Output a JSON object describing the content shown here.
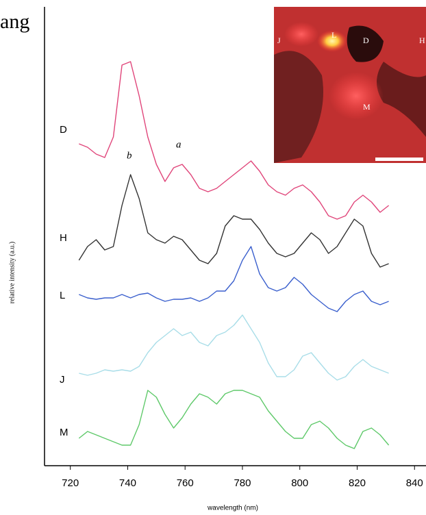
{
  "chart_data": {
    "type": "line",
    "x_label": "wavelength (nm)",
    "y_label": "relative intensity (a.u.)",
    "corner_text": "ang",
    "annotations": [
      "a",
      "b"
    ],
    "inset_labels": [
      "J",
      "L",
      "D",
      "H",
      "M"
    ],
    "x": [
      723,
      726,
      729,
      732,
      735,
      738,
      741,
      744,
      747,
      750,
      753,
      756,
      759,
      762,
      765,
      768,
      771,
      774,
      777,
      780,
      783,
      786,
      789,
      792,
      795,
      798,
      801,
      804,
      807,
      810,
      813,
      816,
      819,
      822,
      825,
      828,
      831
    ],
    "xlim": [
      711,
      844
    ],
    "xticks": [
      720,
      740,
      760,
      780,
      800,
      820,
      840
    ],
    "ylim": [
      0,
      670
    ],
    "series": [
      {
        "name": "D",
        "color": "#e0457a",
        "values": [
          470,
          465,
          455,
          450,
          480,
          585,
          590,
          540,
          480,
          440,
          415,
          435,
          440,
          425,
          405,
          400,
          405,
          415,
          425,
          435,
          445,
          430,
          410,
          400,
          395,
          405,
          410,
          400,
          385,
          365,
          360,
          365,
          385,
          395,
          385,
          370,
          380
        ]
      },
      {
        "name": "H",
        "color": "#333333",
        "values": [
          300,
          320,
          330,
          315,
          320,
          380,
          425,
          390,
          340,
          330,
          325,
          335,
          330,
          315,
          300,
          295,
          310,
          350,
          365,
          360,
          360,
          345,
          325,
          310,
          305,
          310,
          325,
          340,
          330,
          310,
          320,
          340,
          360,
          350,
          310,
          290,
          295
        ]
      },
      {
        "name": "L",
        "color": "#3a5fcd",
        "values": [
          250,
          245,
          243,
          245,
          245,
          250,
          245,
          250,
          252,
          245,
          240,
          243,
          243,
          245,
          240,
          245,
          255,
          255,
          270,
          300,
          320,
          280,
          260,
          255,
          260,
          275,
          265,
          250,
          240,
          230,
          225,
          240,
          250,
          255,
          240,
          235,
          240
        ]
      },
      {
        "name": "J",
        "color": "#a8dde8",
        "values": [
          135,
          132,
          135,
          140,
          138,
          140,
          138,
          145,
          165,
          180,
          190,
          200,
          190,
          195,
          180,
          175,
          190,
          195,
          205,
          220,
          200,
          180,
          150,
          130,
          130,
          140,
          160,
          165,
          150,
          135,
          125,
          130,
          145,
          155,
          145,
          140,
          135
        ]
      },
      {
        "name": "M",
        "color": "#5fc96a",
        "values": [
          40,
          50,
          45,
          40,
          35,
          30,
          30,
          60,
          110,
          100,
          75,
          55,
          70,
          90,
          105,
          100,
          90,
          105,
          110,
          110,
          105,
          100,
          80,
          65,
          50,
          40,
          40,
          60,
          65,
          55,
          40,
          30,
          25,
          50,
          55,
          45,
          30
        ]
      }
    ]
  }
}
